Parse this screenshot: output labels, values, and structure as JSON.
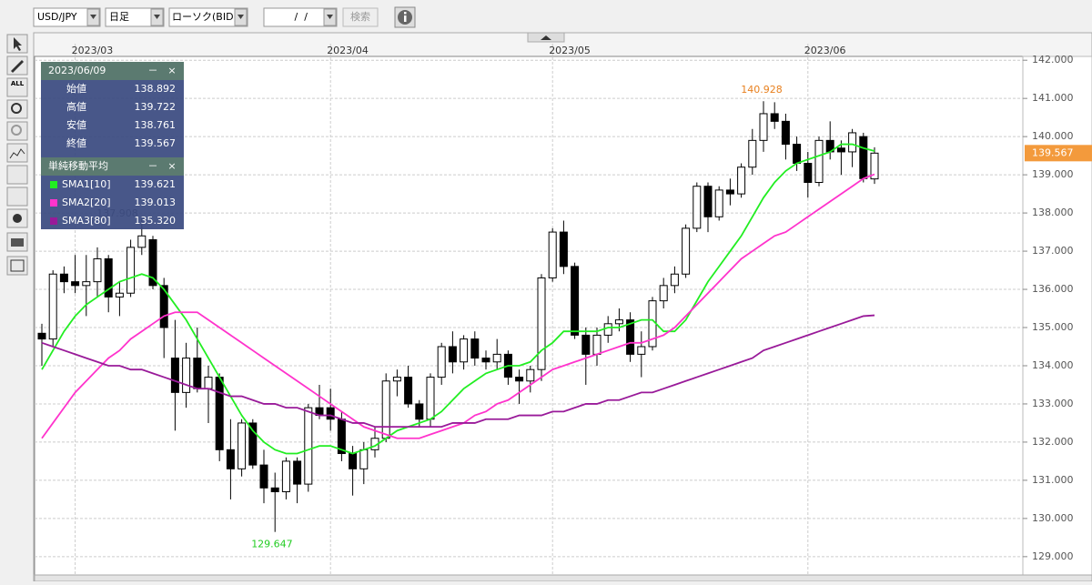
{
  "toolbar": {
    "symbol": "USD/JPY",
    "period": "日足",
    "chart_kind": "ローソク(BID)",
    "date": " /  / ",
    "search": "検索"
  },
  "tools_label": "ALL",
  "info_panel": {
    "date": "2023/06/09",
    "minimize": "－",
    "close": "×",
    "labels": [
      "始値",
      "高値",
      "安値",
      "終値"
    ],
    "sma_title": "単純移動平均",
    "sma_values": [
      "139.621",
      "139.013",
      "135.320"
    ]
  },
  "chart_data": {
    "type": "candlestick",
    "categories": [
      null,
      null,
      null,
      "2023/03",
      null,
      null,
      null,
      null,
      null,
      null,
      null,
      null,
      null,
      null,
      null,
      null,
      null,
      null,
      null,
      null,
      null,
      null,
      null,
      null,
      null,
      null,
      "2023/04",
      null,
      null,
      null,
      null,
      null,
      null,
      null,
      null,
      null,
      null,
      null,
      null,
      null,
      null,
      null,
      null,
      null,
      null,
      null,
      "2023/05",
      null,
      null,
      null,
      null,
      null,
      null,
      null,
      null,
      null,
      null,
      null,
      null,
      null,
      null,
      null,
      null,
      null,
      null,
      null,
      null,
      null,
      null,
      "2023/06",
      null,
      null,
      null,
      null,
      null,
      null
    ],
    "open": [
      134.85,
      134.7,
      136.4,
      136.2,
      136.1,
      136.2,
      136.8,
      135.8,
      135.9,
      137.1,
      137.3,
      136.1,
      134.2,
      133.3,
      134.2,
      133.4,
      133.7,
      131.8,
      131.3,
      132.5,
      131.4,
      130.8,
      130.7,
      131.5,
      130.9,
      132.9,
      132.9,
      132.6,
      131.7,
      131.3,
      131.8,
      132.1,
      133.6,
      133.7,
      133.0,
      132.6,
      133.7,
      134.5,
      134.1,
      134.7,
      134.2,
      134.1,
      134.3,
      133.7,
      133.6,
      133.9,
      136.3,
      137.5,
      136.6,
      134.8,
      134.3,
      134.8,
      135.1,
      135.2,
      134.3,
      134.5,
      135.7,
      136.1,
      136.4,
      137.6,
      138.7,
      137.9,
      138.6,
      138.5,
      139.2,
      139.9,
      140.6,
      140.4,
      139.8,
      139.3,
      138.8,
      139.9,
      139.7,
      139.6,
      140.0,
      138.892
    ],
    "high": [
      135.1,
      136.5,
      136.6,
      136.9,
      136.9,
      137.1,
      136.9,
      136.2,
      137.3,
      137.908,
      137.4,
      136.3,
      135.2,
      134.6,
      135.0,
      134.0,
      133.8,
      132.6,
      132.6,
      132.6,
      131.8,
      131.2,
      131.6,
      131.6,
      133.0,
      133.5,
      133.4,
      132.8,
      131.9,
      132.0,
      132.4,
      133.8,
      133.9,
      134.0,
      133.1,
      133.8,
      134.6,
      134.9,
      134.8,
      134.9,
      134.4,
      134.7,
      134.4,
      133.9,
      134.0,
      136.4,
      137.6,
      137.8,
      136.7,
      135.0,
      135.0,
      135.3,
      135.5,
      135.4,
      134.9,
      135.8,
      136.3,
      136.6,
      137.7,
      138.8,
      138.8,
      138.7,
      138.9,
      139.3,
      140.2,
      140.928,
      140.9,
      140.6,
      140.0,
      139.6,
      140.0,
      140.4,
      139.9,
      140.2,
      140.1,
      139.722
    ],
    "low": [
      134.0,
      134.5,
      135.9,
      135.9,
      135.3,
      135.8,
      135.4,
      135.3,
      135.8,
      136.9,
      136.0,
      134.2,
      132.3,
      132.9,
      133.3,
      132.5,
      131.5,
      130.5,
      131.1,
      131.3,
      130.4,
      129.647,
      130.5,
      130.4,
      130.7,
      132.6,
      132.3,
      131.5,
      130.6,
      130.9,
      131.6,
      132.0,
      133.2,
      132.9,
      132.4,
      132.4,
      133.5,
      133.8,
      133.9,
      134.0,
      133.9,
      133.9,
      133.5,
      133.0,
      133.3,
      133.6,
      136.2,
      136.4,
      134.7,
      133.5,
      134.0,
      134.6,
      134.9,
      134.1,
      133.7,
      134.4,
      135.5,
      135.9,
      136.3,
      137.5,
      137.5,
      137.8,
      138.2,
      138.4,
      139.0,
      139.6,
      140.2,
      139.4,
      139.1,
      138.4,
      138.7,
      139.4,
      139.0,
      139.2,
      138.8,
      138.761
    ],
    "close": [
      134.7,
      136.4,
      136.2,
      136.1,
      136.2,
      136.8,
      135.8,
      135.9,
      137.1,
      137.4,
      136.1,
      135.0,
      133.3,
      134.2,
      133.4,
      133.7,
      131.8,
      131.3,
      132.5,
      131.4,
      130.8,
      130.7,
      131.5,
      130.9,
      132.9,
      132.7,
      132.6,
      131.7,
      131.3,
      131.8,
      132.1,
      133.6,
      133.7,
      133.0,
      132.6,
      133.7,
      134.5,
      134.1,
      134.7,
      134.2,
      134.1,
      134.3,
      133.7,
      133.6,
      133.9,
      136.3,
      137.5,
      136.6,
      134.8,
      134.3,
      134.8,
      135.1,
      135.2,
      134.3,
      134.5,
      135.7,
      136.1,
      136.4,
      137.6,
      138.7,
      137.9,
      138.6,
      138.5,
      139.2,
      139.9,
      140.6,
      140.4,
      139.8,
      139.3,
      138.8,
      139.9,
      139.6,
      139.6,
      140.1,
      138.9,
      139.567
    ],
    "series": [
      {
        "name": "SMA1[10]",
        "color": "#22ee22",
        "values": [
          133.9,
          134.4,
          134.9,
          135.3,
          135.6,
          135.8,
          136.0,
          136.2,
          136.3,
          136.4,
          136.3,
          136.0,
          135.6,
          135.2,
          134.7,
          134.2,
          133.7,
          133.2,
          132.7,
          132.3,
          132.0,
          131.8,
          131.7,
          131.7,
          131.8,
          131.9,
          131.9,
          131.8,
          131.7,
          131.8,
          131.9,
          132.1,
          132.3,
          132.4,
          132.5,
          132.6,
          132.8,
          133.1,
          133.4,
          133.6,
          133.8,
          133.9,
          134.0,
          134.0,
          134.1,
          134.4,
          134.6,
          134.9,
          134.9,
          134.9,
          134.9,
          135.0,
          135.0,
          135.1,
          135.2,
          135.2,
          134.9,
          134.9,
          135.2,
          135.7,
          136.2,
          136.6,
          137.0,
          137.4,
          137.9,
          138.4,
          138.8,
          139.1,
          139.3,
          139.4,
          139.5,
          139.6,
          139.8,
          139.8,
          139.7,
          139.621
        ]
      },
      {
        "name": "SMA2[20]",
        "color": "#ff33cc",
        "values": [
          132.1,
          132.5,
          132.9,
          133.3,
          133.6,
          133.9,
          134.2,
          134.4,
          134.7,
          134.9,
          135.1,
          135.3,
          135.4,
          135.4,
          135.4,
          135.2,
          135.0,
          134.8,
          134.6,
          134.4,
          134.2,
          134.0,
          133.8,
          133.6,
          133.4,
          133.2,
          133.0,
          132.8,
          132.6,
          132.4,
          132.3,
          132.2,
          132.1,
          132.1,
          132.1,
          132.2,
          132.3,
          132.4,
          132.5,
          132.7,
          132.8,
          133.0,
          133.1,
          133.3,
          133.5,
          133.7,
          133.9,
          134.0,
          134.1,
          134.2,
          134.3,
          134.4,
          134.5,
          134.6,
          134.6,
          134.7,
          134.8,
          135.0,
          135.3,
          135.6,
          135.9,
          136.2,
          136.5,
          136.8,
          137.0,
          137.2,
          137.4,
          137.5,
          137.7,
          137.9,
          138.1,
          138.3,
          138.5,
          138.7,
          138.9,
          139.013
        ]
      },
      {
        "name": "SMA3[80]",
        "color": "#991a99",
        "values": [
          134.6,
          134.5,
          134.4,
          134.3,
          134.2,
          134.1,
          134.0,
          134.0,
          133.9,
          133.9,
          133.8,
          133.7,
          133.6,
          133.5,
          133.4,
          133.4,
          133.3,
          133.2,
          133.2,
          133.1,
          133.0,
          133.0,
          132.9,
          132.9,
          132.8,
          132.7,
          132.7,
          132.6,
          132.5,
          132.5,
          132.4,
          132.4,
          132.4,
          132.4,
          132.4,
          132.4,
          132.4,
          132.5,
          132.5,
          132.5,
          132.6,
          132.6,
          132.6,
          132.7,
          132.7,
          132.7,
          132.8,
          132.8,
          132.9,
          133.0,
          133.0,
          133.1,
          133.1,
          133.2,
          133.3,
          133.3,
          133.4,
          133.5,
          133.6,
          133.7,
          133.8,
          133.9,
          134.0,
          134.1,
          134.2,
          134.4,
          134.5,
          134.6,
          134.7,
          134.8,
          134.9,
          135.0,
          135.1,
          135.2,
          135.3,
          135.32
        ]
      }
    ],
    "ylim": [
      128.52,
      142.1
    ],
    "yticks": [
      {
        "value": 129,
        "label": "129.000"
      },
      {
        "value": 130,
        "label": "130.000"
      },
      {
        "value": 131,
        "label": "131.000"
      },
      {
        "value": 132,
        "label": "132.000"
      },
      {
        "value": 133,
        "label": "133.000"
      },
      {
        "value": 134,
        "label": "134.000"
      },
      {
        "value": 135,
        "label": "135.000"
      },
      {
        "value": 136,
        "label": "136.000"
      },
      {
        "value": 137,
        "label": "137.000"
      },
      {
        "value": 138,
        "label": "138.000"
      },
      {
        "value": 139,
        "label": "139.000"
      },
      {
        "value": 140,
        "label": "140.000"
      },
      {
        "value": 141,
        "label": "141.000"
      },
      {
        "value": 142,
        "label": "142.000"
      }
    ],
    "grid": true,
    "up_color": "#ffffff",
    "down_color": "#000000",
    "high_label_color": "#e8801e",
    "low_label_color": "#22cc22",
    "last_price_color": "#f39a3c"
  }
}
